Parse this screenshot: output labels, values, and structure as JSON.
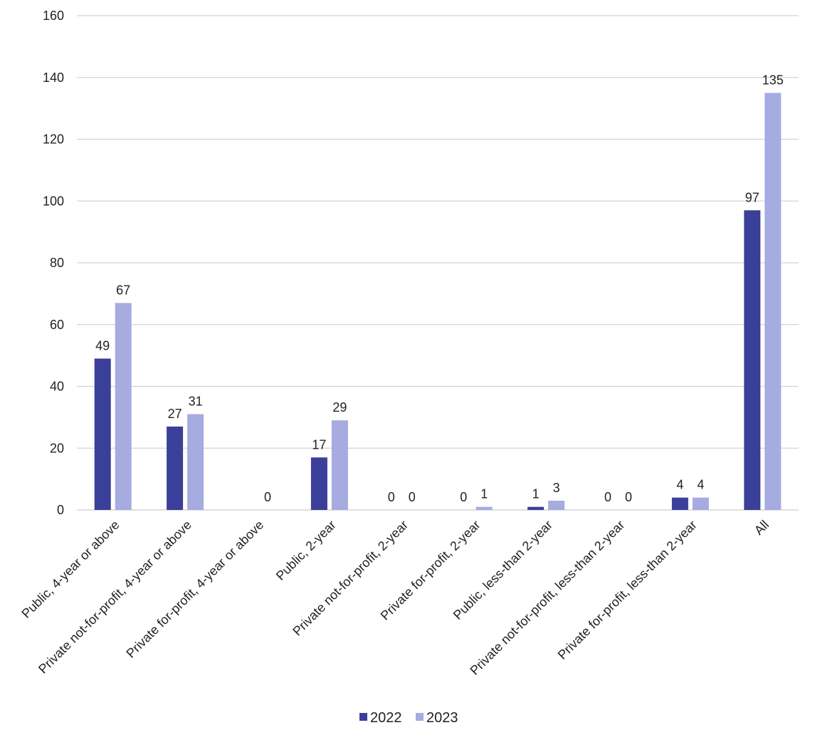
{
  "chart_data": {
    "type": "bar",
    "title": "",
    "xlabel": "",
    "ylabel": "",
    "ylim": [
      0,
      160
    ],
    "yticks": [
      0,
      20,
      40,
      60,
      80,
      100,
      120,
      140,
      160
    ],
    "grid": true,
    "legend_position": "bottom",
    "categories": [
      "Public, 4-year or above",
      "Private not-for-profit, 4-year or above",
      "Private for-profit, 4-year or above",
      "Public, 2-year",
      "Private not-for-profit, 2-year",
      "Private for-profit, 2-year",
      "Public, less-than 2-year",
      "Private not-for-profit, less-than 2-year",
      "Private for-profit, less-than 2-year",
      "All"
    ],
    "series": [
      {
        "name": "2022",
        "color": "#3a3f9a",
        "values": [
          49,
          27,
          null,
          17,
          0,
          0,
          1,
          0,
          4,
          97
        ]
      },
      {
        "name": "2023",
        "color": "#a6abe0",
        "values": [
          67,
          31,
          0,
          29,
          0,
          1,
          3,
          0,
          4,
          135
        ]
      }
    ]
  }
}
